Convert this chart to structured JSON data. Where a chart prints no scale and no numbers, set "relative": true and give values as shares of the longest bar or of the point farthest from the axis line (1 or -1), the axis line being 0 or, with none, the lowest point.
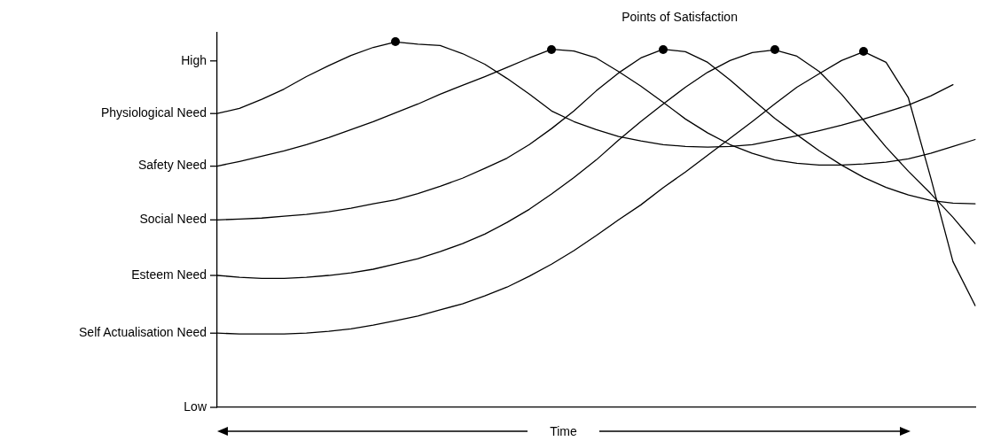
{
  "chart_data": {
    "type": "line",
    "relative": true,
    "xlabel": "Time",
    "annotations": [
      "Points of Satisfaction",
      "High",
      "Physiological Need",
      "Safety Need",
      "Social Need",
      "Esteem Need",
      "Self Actualisation Need",
      "Low"
    ],
    "categories": [
      null,
      null,
      null,
      null,
      null,
      null,
      null,
      null,
      null,
      null,
      null,
      null,
      null,
      null,
      null,
      null,
      null,
      null,
      null,
      null,
      null,
      null,
      null,
      null,
      null,
      null,
      null,
      null,
      null,
      null,
      null,
      null,
      null,
      null,
      null
    ],
    "grid": false,
    "legend": false,
    "marker": "none",
    "line_style": "solid",
    "series": [
      {
        "color": "#000000",
        "values": [
          0.804,
          0.818,
          0.843,
          0.871,
          0.905,
          0.935,
          0.963,
          0.985,
          1,
          0.994,
          0.99,
          0.968,
          0.939,
          0.9,
          0.857,
          0.811,
          0.782,
          0.76,
          0.741,
          0.729,
          0.719,
          0.714,
          0.712,
          0.714,
          0.719,
          0.731,
          0.743,
          0.757,
          0.772,
          0.789,
          0.808,
          0.827,
          0.852,
          0.883,
          null
        ]
      },
      {
        "color": "#000000",
        "values": [
          0.66,
          0.673,
          0.687,
          0.702,
          0.719,
          0.738,
          0.76,
          0.782,
          0.806,
          0.83,
          0.857,
          0.881,
          0.905,
          0.93,
          0.956,
          0.98,
          0.975,
          0.956,
          0.919,
          0.879,
          0.835,
          0.789,
          0.751,
          0.719,
          0.695,
          0.677,
          0.668,
          0.663,
          0.663,
          0.666,
          0.671,
          0.68,
          0.695,
          0.714,
          0.733
        ]
      },
      {
        "color": "#000000",
        "values": [
          0.513,
          0.515,
          0.518,
          0.523,
          0.528,
          0.535,
          0.545,
          0.557,
          0.568,
          0.585,
          0.605,
          0.627,
          0.654,
          0.682,
          0.719,
          0.763,
          0.811,
          0.866,
          0.915,
          0.956,
          0.98,
          0.973,
          0.944,
          0.896,
          0.843,
          0.791,
          0.746,
          0.702,
          0.663,
          0.629,
          0.602,
          0.581,
          0.566,
          0.559,
          0.557
        ]
      },
      {
        "color": "#000000",
        "values": [
          0.361,
          0.356,
          0.353,
          0.353,
          0.356,
          0.361,
          0.368,
          0.378,
          0.392,
          0.407,
          0.426,
          0.448,
          0.474,
          0.506,
          0.542,
          0.584,
          0.629,
          0.677,
          0.731,
          0.782,
          0.83,
          0.876,
          0.917,
          0.949,
          0.971,
          0.978,
          0.961,
          0.919,
          0.857,
          0.785,
          0.712,
          0.646,
          0.585,
          0.52,
          0.448
        ]
      },
      {
        "color": "#000000",
        "values": [
          0.203,
          0.201,
          0.201,
          0.201,
          0.203,
          0.208,
          0.215,
          0.225,
          0.237,
          0.25,
          0.267,
          0.283,
          0.305,
          0.329,
          0.359,
          0.392,
          0.429,
          0.47,
          0.513,
          0.554,
          0.601,
          0.644,
          0.69,
          0.736,
          0.782,
          0.83,
          0.876,
          0.913,
          0.949,
          0.973,
          0.944,
          0.847,
          0.629,
          0.399,
          0.278
        ]
      }
    ]
  }
}
